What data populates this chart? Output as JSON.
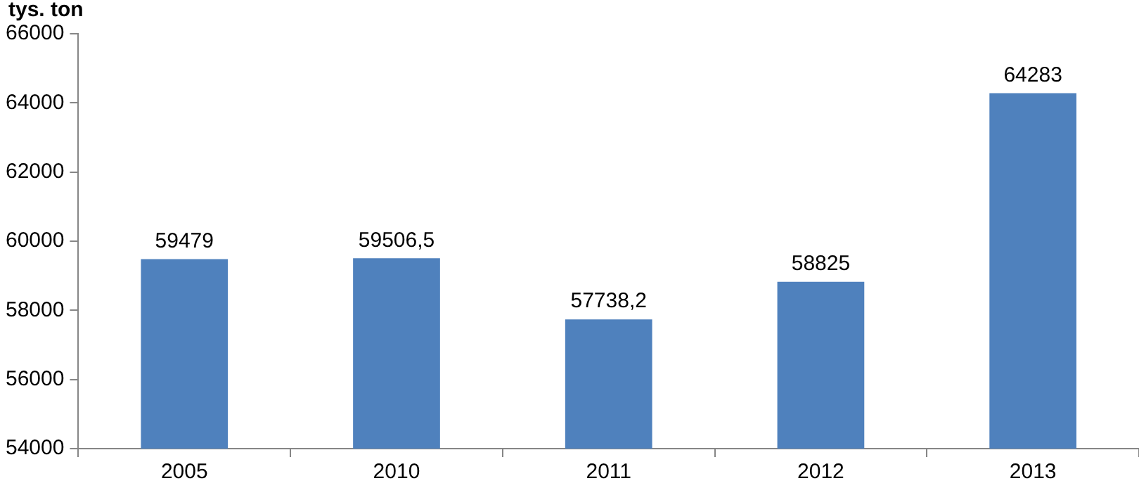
{
  "chart_data": {
    "type": "bar",
    "ylabel": "tys. ton",
    "categories": [
      "2005",
      "2010",
      "2011",
      "2012",
      "2013"
    ],
    "values": [
      59479,
      59506.5,
      57738.2,
      58825,
      64283
    ],
    "value_labels": [
      "59479",
      "59506,5",
      "57738,2",
      "58825",
      "64283"
    ],
    "color": "#4f81bd",
    "ylim": [
      54000,
      66000
    ],
    "yticks": [
      54000,
      56000,
      58000,
      60000,
      62000,
      64000,
      66000
    ],
    "grid": false,
    "legend": false
  }
}
